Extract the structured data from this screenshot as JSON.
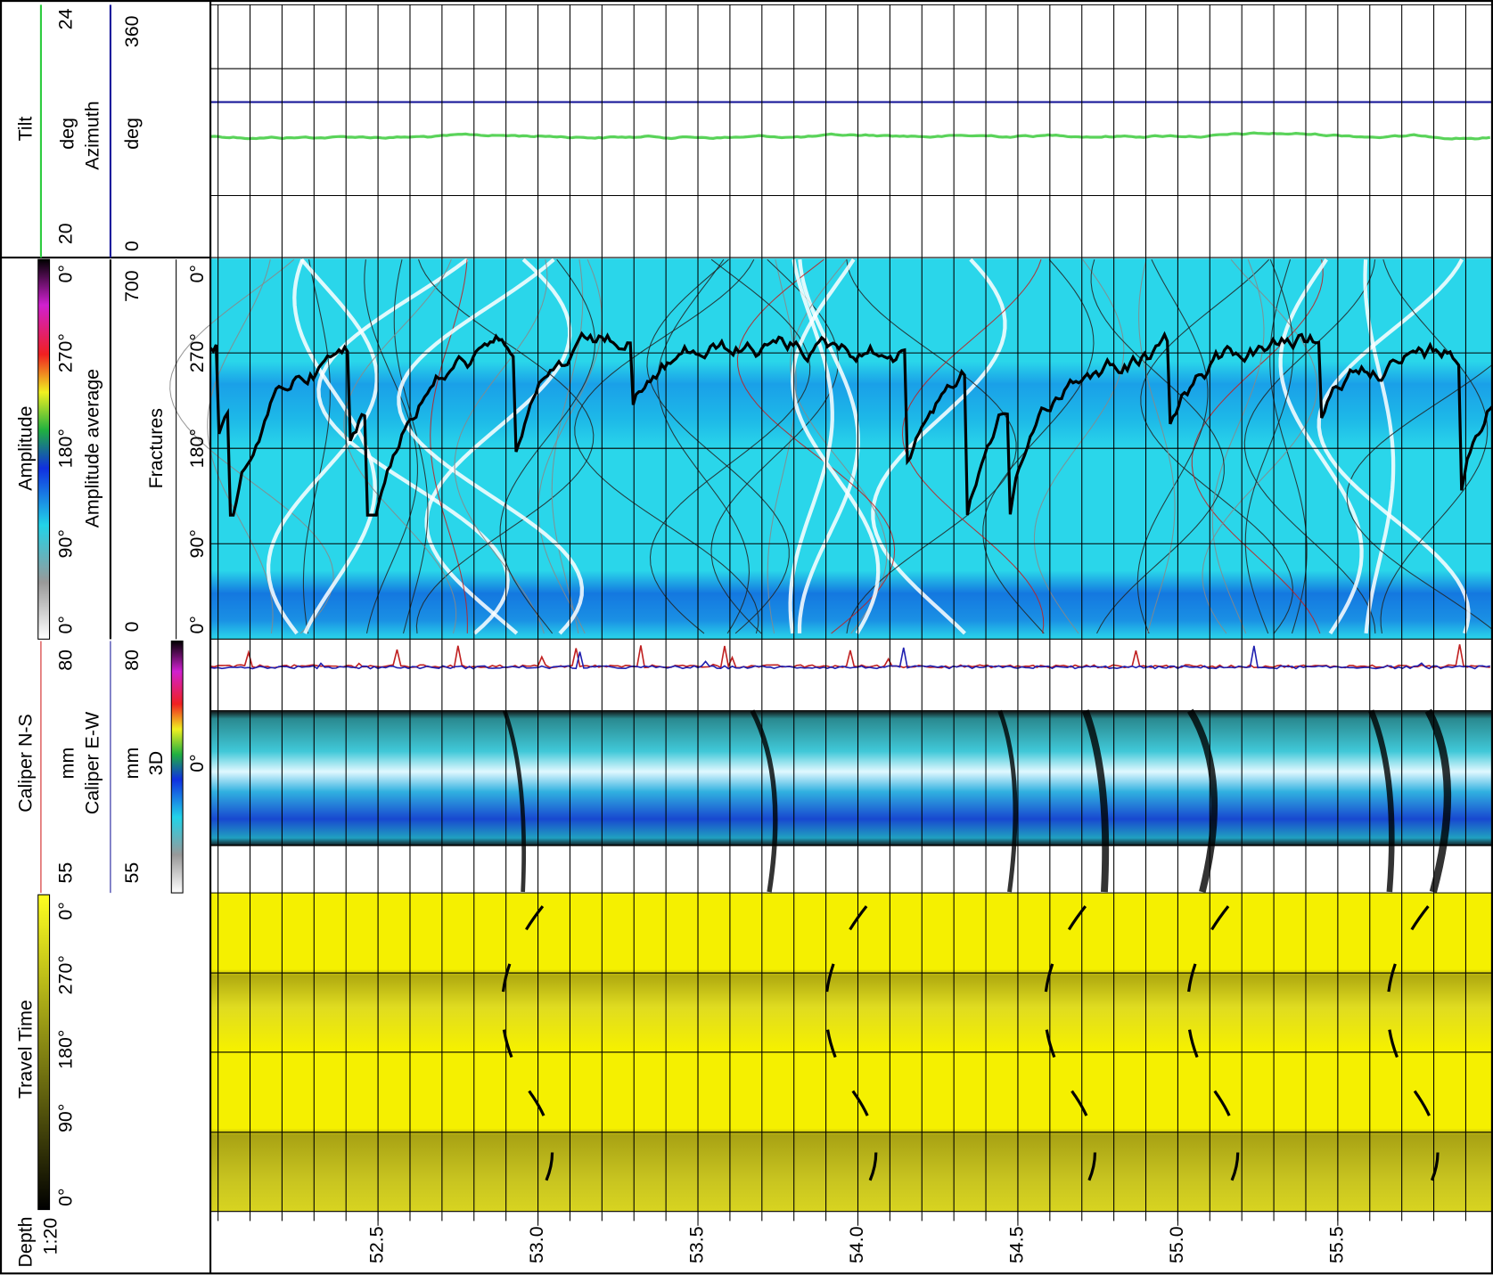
{
  "tracks": [
    {
      "curves": [
        {
          "name": "Tilt",
          "unit": "deg",
          "left": 20,
          "right": 24
        },
        {
          "name": "Azimuth",
          "unit": "deg",
          "left": 0,
          "right": 360
        }
      ]
    },
    {
      "title": "Amplitude",
      "colorbar": [
        "0°",
        "90°",
        "180°",
        "270°",
        "0°"
      ],
      "curves": [
        {
          "name": "Amplitude average",
          "left": 0,
          "right": 700
        }
      ],
      "fractures": {
        "name": "Fractures",
        "ticks": [
          "0°",
          "90°",
          "180°",
          "270°",
          "0°"
        ]
      }
    },
    {
      "curves": [
        {
          "name": "Caliper N-S",
          "unit": "mm",
          "left": 55,
          "right": 80
        },
        {
          "name": "Caliper E-W",
          "unit": "mm",
          "left": 55,
          "right": 80
        }
      ],
      "image": {
        "name": "3D",
        "ticks": [
          "0°"
        ]
      }
    },
    {
      "title": "Travel Time",
      "colorbar": [
        "0°",
        "90°",
        "180°",
        "270°",
        "0°"
      ]
    }
  ],
  "depth": {
    "title": "Depth",
    "scale": "1:20",
    "ticks": [
      52.5,
      {
        "value": 53,
        "label": "53.0"
      },
      53.5,
      {
        "value": 54,
        "label": "54.0"
      },
      54.5,
      {
        "value": 55,
        "label": "55.0"
      },
      55.5
    ]
  }
}
